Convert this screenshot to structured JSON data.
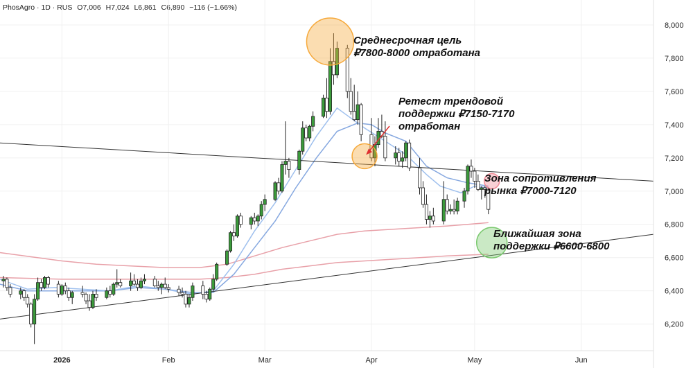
{
  "header": {
    "symbol": "PhosAgro · 1D · RUS",
    "open": "O7,006",
    "high": "H7,024",
    "low": "L6,861",
    "close": "C6,890",
    "change": "−116 (−1.66%)"
  },
  "chart_data": {
    "type": "candlestick",
    "y_ticks": [
      "8,000",
      "7,800",
      "7,600",
      "7,400",
      "7,200",
      "7,000",
      "6,800",
      "6,600",
      "6,400",
      "6,200"
    ],
    "y_values": [
      8000,
      7800,
      7600,
      7400,
      7200,
      7000,
      6800,
      6600,
      6400,
      6200
    ],
    "ylim": [
      6040,
      8150
    ],
    "x_labels": [
      {
        "label": "2026",
        "day": 10,
        "bold": true
      },
      {
        "label": "Feb",
        "day": 41,
        "bold": false
      },
      {
        "label": "Mar",
        "day": 69,
        "bold": false
      },
      {
        "label": "Apr",
        "day": 100,
        "bold": false
      },
      {
        "label": "May",
        "day": 130,
        "bold": false
      },
      {
        "label": "Jun",
        "day": 161,
        "bold": false
      }
    ],
    "xlim": [
      -8,
      182
    ],
    "up_color": "#3b9b3b",
    "down_color": "#ffffff",
    "candles": [
      {
        "d": -7,
        "o": 6460,
        "h": 6490,
        "l": 6420,
        "c": 6470
      },
      {
        "d": -6,
        "o": 6470,
        "h": 6480,
        "l": 6400,
        "c": 6420
      },
      {
        "d": -5,
        "o": 6420,
        "h": 6440,
        "l": 6360,
        "c": 6380
      },
      {
        "d": -2,
        "o": 6380,
        "h": 6420,
        "l": 6350,
        "c": 6400
      },
      {
        "d": -1,
        "o": 6400,
        "h": 6410,
        "l": 6340,
        "c": 6360
      },
      {
        "d": 0,
        "o": 6360,
        "h": 6380,
        "l": 6300,
        "c": 6320
      },
      {
        "d": 1,
        "o": 6320,
        "h": 6330,
        "l": 6180,
        "c": 6200
      },
      {
        "d": 2,
        "o": 6200,
        "h": 6380,
        "l": 6080,
        "c": 6350
      },
      {
        "d": 3,
        "o": 6350,
        "h": 6480,
        "l": 6340,
        "c": 6450
      },
      {
        "d": 4,
        "o": 6450,
        "h": 6470,
        "l": 6400,
        "c": 6420
      },
      {
        "d": 5,
        "o": 6420,
        "h": 6490,
        "l": 6410,
        "c": 6480
      },
      {
        "d": 6,
        "o": 6480,
        "h": 6490,
        "l": 6420,
        "c": 6440
      },
      {
        "d": 9,
        "o": 6440,
        "h": 6460,
        "l": 6360,
        "c": 6380
      },
      {
        "d": 10,
        "o": 6380,
        "h": 6440,
        "l": 6370,
        "c": 6430
      },
      {
        "d": 11,
        "o": 6430,
        "h": 6450,
        "l": 6380,
        "c": 6400
      },
      {
        "d": 12,
        "o": 6400,
        "h": 6420,
        "l": 6340,
        "c": 6360
      },
      {
        "d": 13,
        "o": 6360,
        "h": 6400,
        "l": 6320,
        "c": 6390
      },
      {
        "d": 16,
        "o": 6390,
        "h": 6430,
        "l": 6360,
        "c": 6380
      },
      {
        "d": 17,
        "o": 6380,
        "h": 6390,
        "l": 6320,
        "c": 6340
      },
      {
        "d": 18,
        "o": 6340,
        "h": 6380,
        "l": 6280,
        "c": 6300
      },
      {
        "d": 19,
        "o": 6300,
        "h": 6400,
        "l": 6290,
        "c": 6380
      },
      {
        "d": 20,
        "o": 6380,
        "h": 6410,
        "l": 6340,
        "c": 6360
      },
      {
        "d": 23,
        "o": 6360,
        "h": 6420,
        "l": 6350,
        "c": 6400
      },
      {
        "d": 24,
        "o": 6400,
        "h": 6430,
        "l": 6360,
        "c": 6380
      },
      {
        "d": 25,
        "o": 6380,
        "h": 6450,
        "l": 6370,
        "c": 6440
      },
      {
        "d": 26,
        "o": 6440,
        "h": 6530,
        "l": 6420,
        "c": 6450
      },
      {
        "d": 27,
        "o": 6450,
        "h": 6470,
        "l": 6420,
        "c": 6430
      },
      {
        "d": 30,
        "o": 6430,
        "h": 6510,
        "l": 6400,
        "c": 6460
      },
      {
        "d": 31,
        "o": 6460,
        "h": 6500,
        "l": 6430,
        "c": 6440
      },
      {
        "d": 32,
        "o": 6440,
        "h": 6470,
        "l": 6400,
        "c": 6420
      },
      {
        "d": 33,
        "o": 6420,
        "h": 6480,
        "l": 6410,
        "c": 6460
      },
      {
        "d": 34,
        "o": 6460,
        "h": 6500,
        "l": 6440,
        "c": 6470
      },
      {
        "d": 37,
        "o": 6470,
        "h": 6490,
        "l": 6420,
        "c": 6430
      },
      {
        "d": 38,
        "o": 6430,
        "h": 6460,
        "l": 6400,
        "c": 6420
      },
      {
        "d": 39,
        "o": 6420,
        "h": 6450,
        "l": 6380,
        "c": 6440
      },
      {
        "d": 40,
        "o": 6440,
        "h": 6480,
        "l": 6410,
        "c": 6420
      },
      {
        "d": 41,
        "o": 6420,
        "h": 6440,
        "l": 6390,
        "c": 6410
      },
      {
        "d": 44,
        "o": 6410,
        "h": 6430,
        "l": 6370,
        "c": 6390
      },
      {
        "d": 45,
        "o": 6390,
        "h": 6420,
        "l": 6360,
        "c": 6380
      },
      {
        "d": 46,
        "o": 6380,
        "h": 6400,
        "l": 6300,
        "c": 6320
      },
      {
        "d": 47,
        "o": 6320,
        "h": 6380,
        "l": 6300,
        "c": 6360
      },
      {
        "d": 48,
        "o": 6360,
        "h": 6450,
        "l": 6340,
        "c": 6430
      },
      {
        "d": 51,
        "o": 6430,
        "h": 6460,
        "l": 6350,
        "c": 6380
      },
      {
        "d": 52,
        "o": 6380,
        "h": 6400,
        "l": 6330,
        "c": 6350
      },
      {
        "d": 53,
        "o": 6350,
        "h": 6420,
        "l": 6340,
        "c": 6410
      },
      {
        "d": 54,
        "o": 6410,
        "h": 6500,
        "l": 6400,
        "c": 6470
      },
      {
        "d": 55,
        "o": 6470,
        "h": 6570,
        "l": 6460,
        "c": 6560
      },
      {
        "d": 58,
        "o": 6560,
        "h": 6650,
        "l": 6550,
        "c": 6640
      },
      {
        "d": 59,
        "o": 6640,
        "h": 6760,
        "l": 6630,
        "c": 6750
      },
      {
        "d": 60,
        "o": 6750,
        "h": 6800,
        "l": 6700,
        "c": 6730
      },
      {
        "d": 61,
        "o": 6730,
        "h": 6860,
        "l": 6720,
        "c": 6850
      },
      {
        "d": 62,
        "o": 6850,
        "h": 6870,
        "l": 6780,
        "c": 6800
      },
      {
        "d": 65,
        "o": 6800,
        "h": 6850,
        "l": 6770,
        "c": 6840
      },
      {
        "d": 66,
        "o": 6840,
        "h": 6870,
        "l": 6800,
        "c": 6820
      },
      {
        "d": 67,
        "o": 6820,
        "h": 6860,
        "l": 6790,
        "c": 6850
      },
      {
        "d": 68,
        "o": 6850,
        "h": 6940,
        "l": 6830,
        "c": 6920
      },
      {
        "d": 69,
        "o": 6920,
        "h": 6980,
        "l": 6880,
        "c": 6950
      },
      {
        "d": 72,
        "o": 6950,
        "h": 7060,
        "l": 6940,
        "c": 7050
      },
      {
        "d": 73,
        "o": 7050,
        "h": 7080,
        "l": 6980,
        "c": 7000
      },
      {
        "d": 74,
        "o": 7000,
        "h": 7180,
        "l": 6990,
        "c": 7160
      },
      {
        "d": 75,
        "o": 7160,
        "h": 7420,
        "l": 7100,
        "c": 7180
      },
      {
        "d": 76,
        "o": 7180,
        "h": 7200,
        "l": 7080,
        "c": 7130
      },
      {
        "d": 79,
        "o": 7130,
        "h": 7250,
        "l": 7100,
        "c": 7240
      },
      {
        "d": 80,
        "o": 7240,
        "h": 7420,
        "l": 7220,
        "c": 7380
      },
      {
        "d": 81,
        "o": 7380,
        "h": 7400,
        "l": 7300,
        "c": 7320
      },
      {
        "d": 82,
        "o": 7320,
        "h": 7400,
        "l": 7300,
        "c": 7390
      },
      {
        "d": 83,
        "o": 7390,
        "h": 7480,
        "l": 7360,
        "c": 7450
      },
      {
        "d": 86,
        "o": 7450,
        "h": 7580,
        "l": 7440,
        "c": 7560
      },
      {
        "d": 87,
        "o": 7560,
        "h": 7680,
        "l": 7440,
        "c": 7480
      },
      {
        "d": 88,
        "o": 7480,
        "h": 7860,
        "l": 7460,
        "c": 7780
      },
      {
        "d": 89,
        "o": 7780,
        "h": 7950,
        "l": 7640,
        "c": 7700
      },
      {
        "d": 90,
        "o": 7700,
        "h": 7900,
        "l": 7680,
        "c": 7860
      },
      {
        "d": 93,
        "o": 7860,
        "h": 7880,
        "l": 7560,
        "c": 7600
      },
      {
        "d": 94,
        "o": 7600,
        "h": 7680,
        "l": 7460,
        "c": 7480
      },
      {
        "d": 95,
        "o": 7480,
        "h": 7640,
        "l": 7420,
        "c": 7430
      },
      {
        "d": 96,
        "o": 7430,
        "h": 7600,
        "l": 7400,
        "c": 7520
      },
      {
        "d": 97,
        "o": 7520,
        "h": 7530,
        "l": 7300,
        "c": 7340
      },
      {
        "d": 100,
        "o": 7340,
        "h": 7440,
        "l": 7180,
        "c": 7200
      },
      {
        "d": 101,
        "o": 7200,
        "h": 7330,
        "l": 7150,
        "c": 7280
      },
      {
        "d": 102,
        "o": 7280,
        "h": 7440,
        "l": 7260,
        "c": 7360
      },
      {
        "d": 103,
        "o": 7360,
        "h": 7460,
        "l": 7320,
        "c": 7330
      },
      {
        "d": 104,
        "o": 7330,
        "h": 7420,
        "l": 7180,
        "c": 7200
      },
      {
        "d": 107,
        "o": 7200,
        "h": 7270,
        "l": 7160,
        "c": 7230
      },
      {
        "d": 108,
        "o": 7230,
        "h": 7260,
        "l": 7150,
        "c": 7180
      },
      {
        "d": 109,
        "o": 7180,
        "h": 7240,
        "l": 7140,
        "c": 7200
      },
      {
        "d": 110,
        "o": 7200,
        "h": 7300,
        "l": 7180,
        "c": 7290
      },
      {
        "d": 111,
        "o": 7290,
        "h": 7310,
        "l": 7120,
        "c": 7140
      },
      {
        "d": 114,
        "o": 7140,
        "h": 7200,
        "l": 6980,
        "c": 7020
      },
      {
        "d": 115,
        "o": 7020,
        "h": 7060,
        "l": 6900,
        "c": 6920
      },
      {
        "d": 116,
        "o": 6920,
        "h": 6980,
        "l": 6800,
        "c": 6830
      },
      {
        "d": 117,
        "o": 6830,
        "h": 6880,
        "l": 6780,
        "c": 6850
      },
      {
        "d": 118,
        "o": 6850,
        "h": 6900,
        "l": 6800,
        "c": 6820
      },
      {
        "d": 121,
        "o": 6820,
        "h": 7060,
        "l": 6800,
        "c": 6950
      },
      {
        "d": 122,
        "o": 6950,
        "h": 6980,
        "l": 6860,
        "c": 6880
      },
      {
        "d": 123,
        "o": 6880,
        "h": 6920,
        "l": 6860,
        "c": 6890
      },
      {
        "d": 124,
        "o": 6890,
        "h": 6950,
        "l": 6860,
        "c": 6880
      },
      {
        "d": 125,
        "o": 6880,
        "h": 6960,
        "l": 6860,
        "c": 6940
      },
      {
        "d": 127,
        "o": 6940,
        "h": 7020,
        "l": 6900,
        "c": 7000
      },
      {
        "d": 128,
        "o": 7000,
        "h": 7160,
        "l": 6980,
        "c": 7150
      },
      {
        "d": 129,
        "o": 7150,
        "h": 7190,
        "l": 7080,
        "c": 7120
      },
      {
        "d": 130,
        "o": 7120,
        "h": 7140,
        "l": 7020,
        "c": 7060
      },
      {
        "d": 131,
        "o": 7060,
        "h": 7100,
        "l": 7000,
        "c": 7010
      },
      {
        "d": 132,
        "o": 7010,
        "h": 7030,
        "l": 6950,
        "c": 7020
      },
      {
        "d": 133,
        "o": 7020,
        "h": 7030,
        "l": 6960,
        "c": 7010
      },
      {
        "d": 134,
        "o": 7006,
        "h": 7024,
        "l": 6861,
        "c": 6890
      }
    ],
    "ma_fast": [
      [
        -8,
        6470
      ],
      [
        0,
        6410
      ],
      [
        8,
        6420
      ],
      [
        16,
        6410
      ],
      [
        24,
        6400
      ],
      [
        32,
        6430
      ],
      [
        40,
        6410
      ],
      [
        48,
        6380
      ],
      [
        54,
        6400
      ],
      [
        60,
        6560
      ],
      [
        66,
        6760
      ],
      [
        72,
        6930
      ],
      [
        78,
        7130
      ],
      [
        84,
        7330
      ],
      [
        90,
        7500
      ],
      [
        94,
        7440
      ],
      [
        98,
        7380
      ],
      [
        104,
        7300
      ],
      [
        110,
        7220
      ],
      [
        116,
        7100
      ],
      [
        120,
        7030
      ],
      [
        126,
        6990
      ],
      [
        130,
        7030
      ],
      [
        134,
        7020
      ]
    ],
    "ma_slow": [
      [
        -8,
        6440
      ],
      [
        0,
        6400
      ],
      [
        8,
        6400
      ],
      [
        16,
        6400
      ],
      [
        24,
        6400
      ],
      [
        32,
        6420
      ],
      [
        40,
        6410
      ],
      [
        48,
        6390
      ],
      [
        54,
        6390
      ],
      [
        60,
        6500
      ],
      [
        66,
        6660
      ],
      [
        72,
        6820
      ],
      [
        78,
        7020
      ],
      [
        84,
        7200
      ],
      [
        90,
        7360
      ],
      [
        96,
        7410
      ],
      [
        100,
        7400
      ],
      [
        104,
        7350
      ],
      [
        110,
        7300
      ],
      [
        116,
        7150
      ],
      [
        122,
        7080
      ],
      [
        128,
        7050
      ],
      [
        134,
        7030
      ]
    ],
    "ma_200a": [
      [
        -8,
        6630
      ],
      [
        10,
        6580
      ],
      [
        20,
        6560
      ],
      [
        30,
        6550
      ],
      [
        40,
        6540
      ],
      [
        50,
        6540
      ],
      [
        58,
        6560
      ],
      [
        66,
        6610
      ],
      [
        74,
        6660
      ],
      [
        82,
        6700
      ],
      [
        90,
        6740
      ],
      [
        98,
        6760
      ],
      [
        106,
        6770
      ],
      [
        114,
        6780
      ],
      [
        122,
        6790
      ],
      [
        128,
        6800
      ],
      [
        134,
        6810
      ]
    ],
    "ma_200b": [
      [
        -8,
        6480
      ],
      [
        10,
        6470
      ],
      [
        20,
        6470
      ],
      [
        30,
        6470
      ],
      [
        40,
        6470
      ],
      [
        50,
        6470
      ],
      [
        58,
        6480
      ],
      [
        66,
        6500
      ],
      [
        74,
        6530
      ],
      [
        82,
        6550
      ],
      [
        90,
        6570
      ],
      [
        98,
        6580
      ],
      [
        106,
        6590
      ],
      [
        114,
        6600
      ],
      [
        122,
        6610
      ],
      [
        134,
        6620
      ]
    ],
    "trendline_resistance": [
      [
        -8,
        7290
      ],
      [
        182,
        7060
      ]
    ],
    "trendline_support": [
      [
        -8,
        6230
      ],
      [
        182,
        6740
      ]
    ],
    "annotations": [
      {
        "text": "Среднесрочная цель\n₽7800-8000 отработана",
        "d": 88,
        "v": 7900,
        "circle_color": "#f6a93b"
      },
      {
        "text": "Ретест трендовой\nподдержки ₽7150-7170\nотработан",
        "d": 98,
        "v": 7210,
        "circle_color": "#f6a93b"
      },
      {
        "text": "Зона сопротивления\nрынка ₽7000-7120",
        "d": 135,
        "v": 7060,
        "circle_color": "#f28a96"
      },
      {
        "text": "Ближайшая зона\nподдержки ₽6600-6800",
        "d": 135,
        "v": 6690,
        "circle_color": "#7bc96f"
      }
    ]
  }
}
